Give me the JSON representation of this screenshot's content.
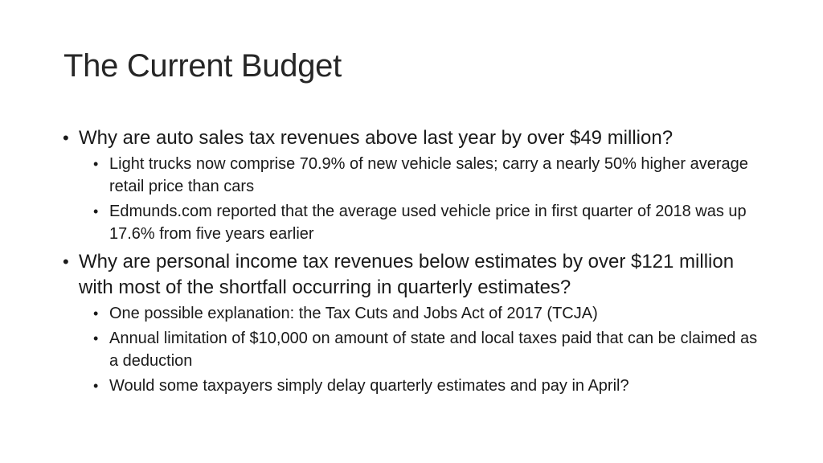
{
  "slide": {
    "title": "The Current Budget",
    "bullet_glyph": "•",
    "points": [
      {
        "text": "Why are auto sales tax revenues above last year by over $49 million?",
        "subpoints": [
          "Light trucks now comprise 70.9% of new vehicle sales; carry a nearly 50% higher average retail price than cars",
          "Edmunds.com reported that the average used vehicle price in first quarter of 2018 was up 17.6% from five years earlier"
        ]
      },
      {
        "text": "Why are personal income tax revenues below estimates by over $121 million with most of the shortfall occurring in quarterly estimates?",
        "subpoints": [
          "One possible explanation: the Tax Cuts and Jobs Act of 2017 (TCJA)",
          "Annual limitation of $10,000 on amount of state and local taxes paid that can be claimed as a deduction",
          "Would some taxpayers simply delay quarterly estimates and pay in April?"
        ]
      }
    ]
  }
}
